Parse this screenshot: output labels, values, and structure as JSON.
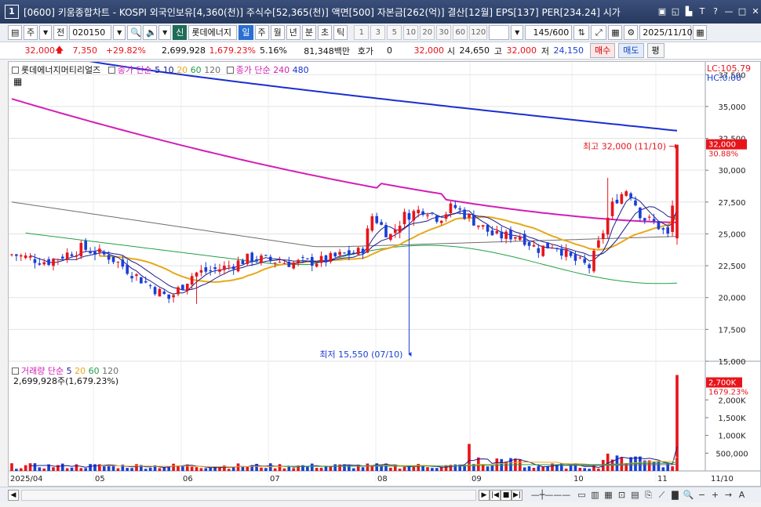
{
  "window": {
    "number": "1",
    "title": "[0600] 키움종합차트 - KOSPI 외국인보유[4,360(천)] 주식수[52,365(천)] 액면[500] 자본금[262(억)] 결산[12월] EPS[137] PER[234.24] 시가"
  },
  "toolbar": {
    "type_label": "주",
    "all_label": "전",
    "code": "020150",
    "stock_badge": "신",
    "stock_name": "롯데에너지",
    "period_day": "일",
    "period_week": "주",
    "period_month": "월",
    "period_year": "년",
    "period_min": "분",
    "period_sec": "초",
    "period_tick": "틱",
    "intervals": [
      "1",
      "3",
      "5",
      "10",
      "20",
      "30",
      "60",
      "120"
    ],
    "count": "145",
    "count_max": "/600",
    "date": "2025/11/10"
  },
  "quote": {
    "price": "32,000",
    "change": "7,350",
    "change_pct": "+29.82%",
    "volume": "2,699,928",
    "volume_ratio": "1,679.23%",
    "turnover": "5.16%",
    "amount": "81,348백만",
    "hoga_label": "호가",
    "hoga_value": "0",
    "hoga_price": "32,000",
    "open_label": "시",
    "open": "24,650",
    "high_label": "고",
    "high": "32,000",
    "low_label": "저",
    "low": "24,150",
    "buy_label": "매수",
    "sell_label": "매도",
    "avg_label": "평"
  },
  "price_panel": {
    "stock_name": "롯데에너지머티리얼즈",
    "ma_label": "종가 단순",
    "ma_periods": [
      "5",
      "10",
      "20",
      "60",
      "120"
    ],
    "ma_long_label": "종가 단순",
    "ma_long_periods": [
      "240",
      "480"
    ],
    "lc_label": "LC:105.79",
    "hc_label": "HC:0.00",
    "y_ticks": [
      "37,500",
      "35,000",
      "32,500",
      "30,000",
      "27,500",
      "25,000",
      "22,500",
      "20,000",
      "17,500",
      "15,000"
    ],
    "current_price_tag": "32,000",
    "current_pct_tag": "30.88%",
    "high_annotation": "최고 32,000 (11/10)",
    "low_annotation": "최저 15,550 (07/10)"
  },
  "volume_panel": {
    "label": "거래량",
    "ma_label": "단순",
    "ma_periods": [
      "5",
      "20",
      "60",
      "120"
    ],
    "value_text": "2,699,928주(1,679.23%)",
    "y_ticks": [
      "2,000K",
      "1,500K",
      "1,000K",
      "500,000"
    ],
    "current_tag": "2,700K",
    "current_pct": "1679.23%"
  },
  "x_axis": {
    "ticks": [
      "2025/04",
      "05",
      "06",
      "07",
      "08",
      "09",
      "10",
      "11",
      "11/10"
    ]
  },
  "colors": {
    "up": "#e8141b",
    "down": "#1a3fd6",
    "ma5": "#1b1b8c",
    "ma10": "#1b1b8c",
    "ma20": "#e6a91a",
    "ma60": "#23a04a",
    "ma120": "#6e6e6e",
    "ma240": "#d21fb5",
    "ma480": "#1a2fd0"
  },
  "chart_data": {
    "type": "candlestick",
    "price_range": [
      15000,
      38500
    ],
    "volume_range": [
      0,
      2800000
    ],
    "events": [
      {
        "date": "07/10",
        "low": 15550
      },
      {
        "date": "11/10",
        "high": 32000,
        "close": 32000,
        "open": 24650,
        "low": 24150,
        "volume": 2699928
      }
    ]
  }
}
